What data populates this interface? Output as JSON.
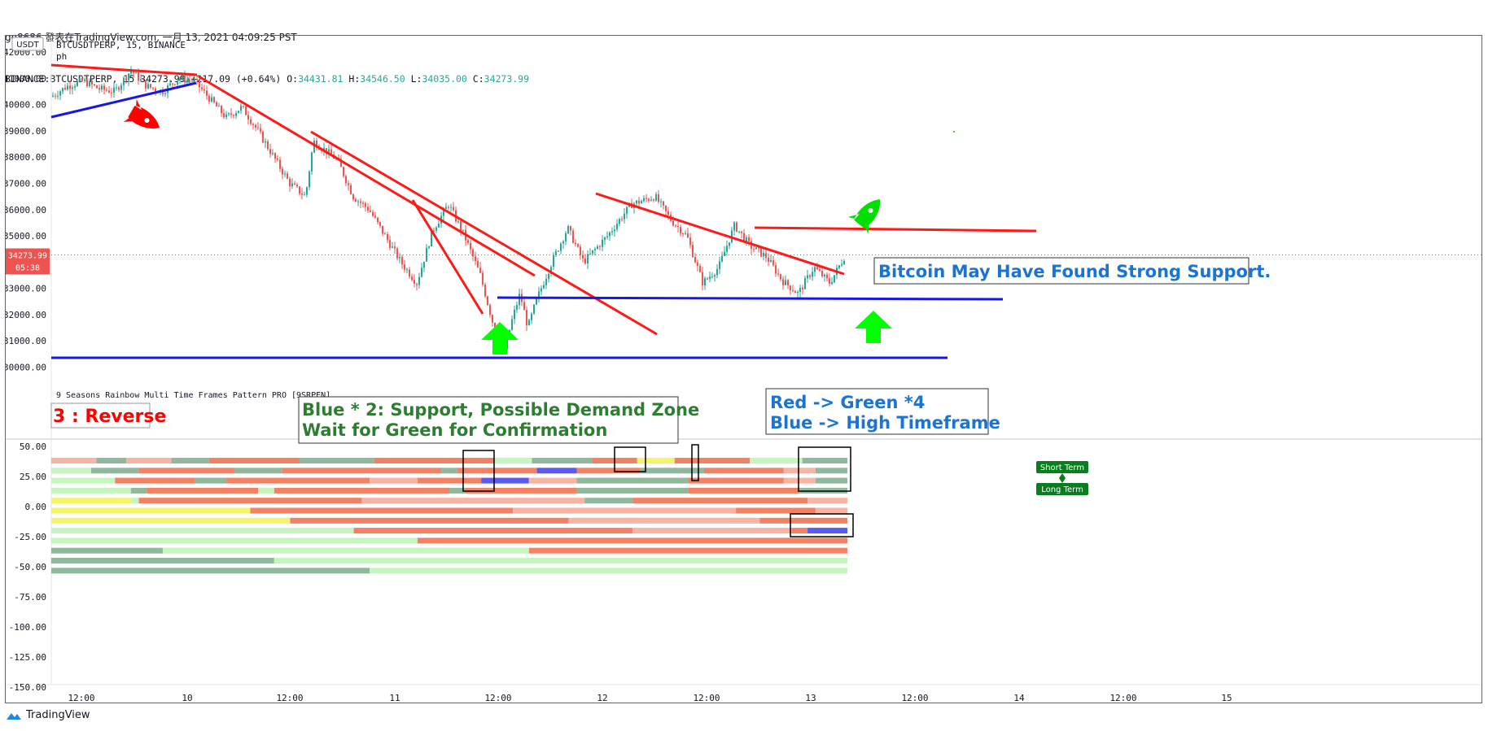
{
  "header": {
    "line1": "go8686 發表在TradingView.com, 一月 13, 2021 04:09:25 PST",
    "symbol_prefix": "BINANCE:BTCUSDTPERP, 15 34273.99",
    "change": "+217.09 (+0.64%)",
    "o_label": "O:",
    "o_value": "34431.81",
    "h_label": "H:",
    "h_value": "34546.50",
    "l_label": "L:",
    "l_value": "34035.00",
    "c_label": "C:",
    "c_value": "34273.99"
  },
  "footer": {
    "brand": "TradingView"
  },
  "colors": {
    "trend_red": "#ff1a1a",
    "support_blue": "#1717e6",
    "bull": "#26a69a",
    "bear": "#ef5350",
    "arrow_green": "#00ff00",
    "label_green": "#0a7d1e",
    "annotation_blue": "#1b74d2",
    "annotation_red": "#ff0000",
    "annotation_green": "#2e7d32",
    "price_tag": "#ef5350"
  },
  "chart_data": [
    {
      "type": "candlestick",
      "title": "BTCUSDTPERP, 15, BINANCE",
      "subtitle": "ph",
      "currency_button": "USDT",
      "y_ticks": [
        "42000.00",
        "41000.00",
        "40000.00",
        "39000.00",
        "38000.00",
        "37000.00",
        "36000.00",
        "35000.00",
        "34000.00",
        "33000.00",
        "32000.00",
        "31000.00",
        "30000.00"
      ],
      "ylim": [
        29600,
        42300
      ],
      "last_price": "34273.99",
      "countdown": "05:38",
      "x_ticks": [
        "12:00",
        "10",
        "12:00",
        "11",
        "12:00",
        "12",
        "12:00",
        "13",
        "12:00",
        "14",
        "12:00",
        "15"
      ],
      "price_path": [
        [
          0,
          40300
        ],
        [
          0.02,
          40700
        ],
        [
          0.04,
          40900
        ],
        [
          0.06,
          40600
        ],
        [
          0.08,
          40500
        ],
        [
          0.1,
          41300
        ],
        [
          0.12,
          40700
        ],
        [
          0.14,
          40500
        ],
        [
          0.16,
          41000
        ],
        [
          0.18,
          40900
        ],
        [
          0.2,
          40200
        ],
        [
          0.22,
          39500
        ],
        [
          0.24,
          39900
        ],
        [
          0.26,
          39000
        ],
        [
          0.28,
          38000
        ],
        [
          0.3,
          37000
        ],
        [
          0.32,
          36500
        ],
        [
          0.33,
          38600
        ],
        [
          0.36,
          37900
        ],
        [
          0.38,
          36500
        ],
        [
          0.4,
          36000
        ],
        [
          0.42,
          35000
        ],
        [
          0.44,
          34000
        ],
        [
          0.46,
          33200
        ],
        [
          0.48,
          35200
        ],
        [
          0.5,
          36200
        ],
        [
          0.52,
          35000
        ],
        [
          0.54,
          33500
        ],
        [
          0.56,
          31200
        ],
        [
          0.57,
          30600
        ],
        [
          0.58,
          31800
        ],
        [
          0.59,
          32800
        ],
        [
          0.6,
          31500
        ],
        [
          0.61,
          32500
        ],
        [
          0.63,
          34000
        ],
        [
          0.65,
          35300
        ],
        [
          0.67,
          34000
        ],
        [
          0.7,
          35000
        ],
        [
          0.73,
          36200
        ],
        [
          0.76,
          36500
        ],
        [
          0.78,
          35600
        ],
        [
          0.8,
          35000
        ],
        [
          0.82,
          33200
        ],
        [
          0.84,
          33800
        ],
        [
          0.86,
          35400
        ],
        [
          0.88,
          34600
        ],
        [
          0.9,
          34200
        ],
        [
          0.92,
          33300
        ],
        [
          0.94,
          32800
        ],
        [
          0.96,
          33800
        ],
        [
          0.98,
          33200
        ],
        [
          1.0,
          34300
        ]
      ],
      "trendlines": [
        {
          "color": "red",
          "from": [
            "09 05:00",
            41500
          ],
          "to": [
            "10 00:30",
            41200
          ]
        },
        {
          "color": "red",
          "from": [
            "10 01:00",
            41000
          ],
          "to": [
            "11 18:00",
            33400
          ]
        },
        {
          "color": "red",
          "from": [
            "10 18:00",
            38800
          ],
          "to": [
            "11 22:00",
            33600
          ]
        },
        {
          "color": "red",
          "from": [
            "11 07:00",
            36200
          ],
          "to": [
            "11 13:00",
            32100
          ]
        },
        {
          "color": "red",
          "from": [
            "11 23:00",
            36700
          ],
          "to": [
            "13 01:00",
            33500
          ]
        },
        {
          "color": "red",
          "from": [
            "12 20:00",
            35300
          ],
          "to": [
            "14 05:00",
            35100
          ]
        },
        {
          "color": "blue",
          "from": [
            "09 05:00",
            39500
          ],
          "to": [
            "10 00:00",
            40800
          ]
        },
        {
          "color": "blue",
          "from": [
            "11 22:00",
            32600
          ],
          "to": [
            "14 00:00",
            32500
          ]
        },
        {
          "color": "blue",
          "from": [
            "09 05:00",
            30300
          ],
          "to": [
            "13 16:00",
            30300
          ]
        }
      ],
      "annotations": [
        "Bitcoin May Have Found Strong Support."
      ]
    },
    {
      "type": "heatmap",
      "title": "9 Seasons Rainbow Multi Time Frames Pattern PRO [9SRPEN]",
      "y_ticks": [
        "50.00",
        "25.00",
        "0.00",
        "-25.00",
        "-50.00",
        "-75.00",
        "-100.00",
        "-125.00",
        "-150.00"
      ],
      "ylim": [
        -155,
        52
      ],
      "rows": 12,
      "annotations": {
        "reverse": "3 : Reverse",
        "support_1": "Blue * 2: Support, Possible Demand Zone",
        "support_2": "Wait for Green for Confirmation",
        "confirm_1": "Red -> Green *4",
        "confirm_2": "Blue -> High Timeframe"
      },
      "legend": {
        "short": "Short Term",
        "long": "Long Term"
      }
    }
  ]
}
